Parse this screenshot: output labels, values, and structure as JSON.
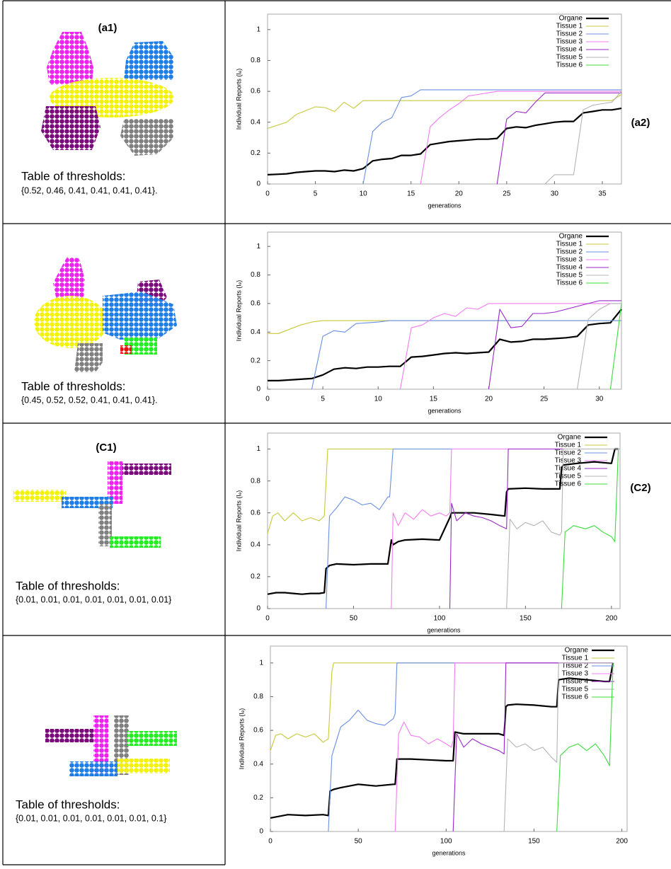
{
  "panels": [
    {
      "left_label": "(a1)",
      "right_label": "(a2)",
      "threshold_title": "Table of thresholds:",
      "thresholds": "{0.52, 0.46, 0.41, 0.41, 0.41, 0.41}."
    },
    {
      "threshold_title": "Table of thresholds:",
      "thresholds": "{0.45, 0.52, 0.52, 0.41, 0.41, 0.41}."
    },
    {
      "left_label": "(C1)",
      "right_label": "(C2)",
      "threshold_title": "Table of thresholds:",
      "thresholds": "{0.01, 0.01, 0.01, 0.01, 0.01, 0.01, 0.01}"
    },
    {
      "threshold_title": "Table of thresholds:",
      "thresholds": "{0.01, 0.01, 0.01, 0.01, 0.01, 0.01, 0.1}"
    }
  ],
  "chart_data": [
    {
      "type": "line",
      "x_label": "generations",
      "y_label": "Individual Reports (Iₑ)",
      "legend": "top-right",
      "xlim": [
        0,
        37
      ],
      "xticks": [
        0,
        5,
        10,
        15,
        20,
        25,
        30,
        35
      ],
      "ylim": [
        0,
        1.1
      ],
      "yticks": [
        0,
        0.2,
        0.4,
        0.6,
        0.8,
        1
      ],
      "series": [
        {
          "name": "Organe",
          "color": "#000000",
          "x": [
            0,
            1,
            2,
            3,
            4,
            5,
            6,
            7,
            8,
            9,
            10,
            11,
            12,
            13,
            14,
            15,
            16,
            17,
            18,
            19,
            20,
            21,
            22,
            23,
            24,
            25,
            26,
            27,
            28,
            29,
            30,
            31,
            32,
            33,
            34,
            35,
            36,
            37
          ],
          "values": [
            0.06,
            0.063,
            0.066,
            0.075,
            0.08,
            0.085,
            0.085,
            0.08,
            0.09,
            0.085,
            0.1,
            0.15,
            0.16,
            0.165,
            0.185,
            0.185,
            0.195,
            0.255,
            0.265,
            0.275,
            0.28,
            0.285,
            0.29,
            0.29,
            0.295,
            0.36,
            0.37,
            0.365,
            0.38,
            0.39,
            0.4,
            0.405,
            0.405,
            0.46,
            0.47,
            0.48,
            0.48,
            0.49
          ]
        },
        {
          "name": "Tissue 1",
          "color": "#c8c83c",
          "x": [
            0,
            2,
            3,
            5,
            6,
            7,
            8,
            9,
            10,
            36,
            37
          ],
          "values": [
            0.36,
            0.4,
            0.45,
            0.5,
            0.495,
            0.47,
            0.53,
            0.49,
            0.54,
            0.54,
            0.58
          ]
        },
        {
          "name": "Tissue 2",
          "color": "#6a8fe0",
          "x": [
            10,
            11,
            12,
            13,
            14,
            15,
            16,
            37
          ],
          "values": [
            0,
            0.34,
            0.4,
            0.43,
            0.56,
            0.57,
            0.61,
            0.61
          ]
        },
        {
          "name": "Tissue 3",
          "color": "#f07cf0",
          "x": [
            16,
            17,
            18,
            19,
            20,
            21,
            22,
            23,
            24,
            37
          ],
          "values": [
            0,
            0.37,
            0.43,
            0.48,
            0.52,
            0.57,
            0.58,
            0.59,
            0.6,
            0.6
          ]
        },
        {
          "name": "Tissue 4",
          "color": "#9a28c8",
          "x": [
            24,
            25,
            26,
            27,
            28,
            29,
            37
          ],
          "values": [
            0,
            0.42,
            0.47,
            0.46,
            0.53,
            0.59,
            0.59
          ]
        },
        {
          "name": "Tissue 5",
          "color": "#b4b4b4",
          "x": [
            29,
            30,
            32,
            33,
            34,
            35,
            36,
            37
          ],
          "values": [
            0,
            0.06,
            0.06,
            0.48,
            0.51,
            0.52,
            0.53,
            0.6
          ]
        },
        {
          "name": "Tissue 6",
          "color": "#3cdc3c",
          "x": [],
          "values": []
        }
      ]
    },
    {
      "type": "line",
      "x_label": "generations",
      "y_label": "Individual Reports (Iₑ)",
      "legend": "top-right",
      "xlim": [
        0,
        32
      ],
      "xticks": [
        0,
        5,
        10,
        15,
        20,
        25,
        30
      ],
      "ylim": [
        0,
        1.1
      ],
      "yticks": [
        0,
        0.2,
        0.4,
        0.6,
        0.8,
        1
      ],
      "series": [
        {
          "name": "Organe",
          "color": "#000000",
          "x": [
            0,
            1,
            2,
            3,
            4,
            5,
            6,
            7,
            8,
            9,
            10,
            11,
            12,
            13,
            14,
            15,
            16,
            17,
            18,
            19,
            20,
            21,
            22,
            23,
            24,
            25,
            26,
            27,
            28,
            29,
            30,
            31,
            32
          ],
          "values": [
            0.06,
            0.06,
            0.065,
            0.07,
            0.075,
            0.1,
            0.14,
            0.15,
            0.145,
            0.155,
            0.155,
            0.16,
            0.16,
            0.225,
            0.23,
            0.24,
            0.25,
            0.255,
            0.25,
            0.255,
            0.26,
            0.35,
            0.33,
            0.335,
            0.35,
            0.35,
            0.355,
            0.36,
            0.37,
            0.45,
            0.46,
            0.465,
            0.56
          ]
        },
        {
          "name": "Tissue 1",
          "color": "#c8c83c",
          "x": [
            0,
            1,
            2,
            3,
            4,
            5,
            32
          ],
          "values": [
            0.39,
            0.39,
            0.42,
            0.45,
            0.47,
            0.48,
            0.48
          ]
        },
        {
          "name": "Tissue 2",
          "color": "#6a8fe0",
          "x": [
            4,
            5,
            6,
            7,
            8,
            9,
            10,
            11,
            32
          ],
          "values": [
            0,
            0.37,
            0.41,
            0.4,
            0.46,
            0.465,
            0.47,
            0.48,
            0.48
          ]
        },
        {
          "name": "Tissue 3",
          "color": "#f07cf0",
          "x": [
            12,
            13,
            14,
            15,
            16,
            17,
            18,
            19,
            20,
            21,
            32
          ],
          "values": [
            0,
            0.43,
            0.45,
            0.5,
            0.53,
            0.51,
            0.57,
            0.56,
            0.6,
            0.6,
            0.6
          ]
        },
        {
          "name": "Tissue 4",
          "color": "#9a28c8",
          "x": [
            20,
            21,
            22,
            23,
            24,
            25,
            26,
            27,
            28,
            29,
            30,
            32
          ],
          "values": [
            0,
            0.56,
            0.43,
            0.44,
            0.53,
            0.53,
            0.54,
            0.56,
            0.58,
            0.6,
            0.62,
            0.62
          ]
        },
        {
          "name": "Tissue 5",
          "color": "#b4b4b4",
          "x": [
            28,
            29,
            30,
            31,
            32
          ],
          "values": [
            0,
            0.49,
            0.56,
            0.6,
            0.6
          ]
        },
        {
          "name": "Tissue 6",
          "color": "#3cdc3c",
          "x": [
            31,
            32
          ],
          "values": [
            0,
            0.6
          ]
        }
      ]
    },
    {
      "type": "line",
      "x_label": "generations",
      "y_label": "Individual Reports (Iₑ)",
      "legend": "top-right",
      "xlim": [
        0,
        205
      ],
      "xticks": [
        0,
        50,
        100,
        150,
        200
      ],
      "ylim": [
        0,
        1.1
      ],
      "yticks": [
        0,
        0.2,
        0.4,
        0.6,
        0.8,
        1
      ],
      "series": [
        {
          "name": "Organe",
          "color": "#000000",
          "x": [
            0,
            5,
            10,
            15,
            20,
            25,
            30,
            33,
            34,
            36,
            40,
            50,
            60,
            70,
            72,
            73,
            76,
            80,
            90,
            100,
            106,
            107,
            110,
            120,
            130,
            138,
            139,
            140,
            150,
            160,
            170,
            171,
            172,
            180,
            190,
            200,
            202,
            204
          ],
          "values": [
            0.09,
            0.1,
            0.1,
            0.095,
            0.09,
            0.095,
            0.095,
            0.1,
            0.25,
            0.27,
            0.28,
            0.275,
            0.28,
            0.28,
            0.43,
            0.4,
            0.42,
            0.43,
            0.435,
            0.43,
            0.57,
            0.6,
            0.6,
            0.6,
            0.59,
            0.58,
            0.73,
            0.75,
            0.755,
            0.75,
            0.75,
            0.88,
            0.9,
            0.91,
            0.92,
            0.91,
            1,
            1
          ]
        },
        {
          "name": "Tissue 1",
          "color": "#c8c83c",
          "x": [
            0,
            3,
            6,
            10,
            15,
            20,
            25,
            30,
            33,
            35,
            205
          ],
          "values": [
            0.47,
            0.58,
            0.6,
            0.55,
            0.6,
            0.55,
            0.57,
            0.55,
            0.58,
            1,
            1
          ]
        },
        {
          "name": "Tissue 2",
          "color": "#6a8fe0",
          "x": [
            34,
            36,
            40,
            45,
            50,
            55,
            60,
            65,
            70,
            71,
            73,
            205
          ],
          "values": [
            0,
            0.58,
            0.63,
            0.7,
            0.68,
            0.65,
            0.66,
            0.62,
            0.7,
            0.7,
            1,
            1
          ]
        },
        {
          "name": "Tissue 3",
          "color": "#f07cf0",
          "x": [
            72,
            73,
            76,
            80,
            85,
            90,
            95,
            100,
            104,
            106,
            107,
            205
          ],
          "values": [
            0,
            0.6,
            0.52,
            0.6,
            0.56,
            0.62,
            0.58,
            0.6,
            0.58,
            0.6,
            1,
            1
          ]
        },
        {
          "name": "Tissue 4",
          "color": "#9a28c8",
          "x": [
            106,
            107,
            110,
            115,
            120,
            125,
            130,
            135,
            139,
            140,
            205
          ],
          "values": [
            0,
            0.66,
            0.55,
            0.6,
            0.58,
            0.57,
            0.55,
            0.52,
            0.5,
            1,
            1
          ]
        },
        {
          "name": "Tissue 5",
          "color": "#b4b4b4",
          "x": [
            139,
            141,
            145,
            150,
            155,
            160,
            165,
            170,
            171,
            172,
            205
          ],
          "values": [
            0,
            0.56,
            0.5,
            0.54,
            0.52,
            0.55,
            0.48,
            0.46,
            0.48,
            1,
            1
          ]
        },
        {
          "name": "Tissue 6",
          "color": "#3cdc3c",
          "x": [
            171,
            173,
            178,
            185,
            190,
            195,
            200,
            202,
            204
          ],
          "values": [
            0,
            0.48,
            0.52,
            0.5,
            0.52,
            0.48,
            0.45,
            0.42,
            1
          ]
        }
      ]
    },
    {
      "type": "line",
      "x_label": "generations",
      "y_label": "Individual Reports (Iₑ)",
      "legend": "top-right",
      "xlim": [
        0,
        203
      ],
      "xticks": [
        0,
        50,
        100,
        150,
        200
      ],
      "ylim": [
        0,
        1.1
      ],
      "yticks": [
        0,
        0.2,
        0.4,
        0.6,
        0.8,
        1
      ],
      "series": [
        {
          "name": "Organe",
          "color": "#000000",
          "x": [
            0,
            10,
            20,
            30,
            33,
            34,
            36,
            40,
            50,
            60,
            70,
            71,
            72,
            75,
            80,
            90,
            100,
            104,
            105,
            110,
            120,
            130,
            133,
            134,
            135,
            140,
            150,
            160,
            163,
            164,
            170,
            180,
            190,
            193,
            195
          ],
          "values": [
            0.08,
            0.1,
            0.095,
            0.1,
            0.095,
            0.24,
            0.25,
            0.26,
            0.28,
            0.27,
            0.28,
            0.28,
            0.43,
            0.43,
            0.43,
            0.425,
            0.42,
            0.42,
            0.59,
            0.58,
            0.58,
            0.58,
            0.57,
            0.74,
            0.75,
            0.755,
            0.75,
            0.74,
            0.74,
            0.9,
            0.91,
            0.9,
            0.89,
            0.89,
            1
          ]
        },
        {
          "name": "Tissue 1",
          "color": "#c8c83c",
          "x": [
            0,
            3,
            6,
            10,
            15,
            20,
            25,
            30,
            33,
            35,
            36,
            195
          ],
          "values": [
            0.48,
            0.57,
            0.58,
            0.55,
            0.58,
            0.56,
            0.58,
            0.53,
            0.55,
            0.95,
            1,
            1
          ]
        },
        {
          "name": "Tissue 2",
          "color": "#6a8fe0",
          "x": [
            33,
            35,
            40,
            45,
            50,
            55,
            60,
            65,
            70,
            71,
            72,
            195
          ],
          "values": [
            0,
            0.45,
            0.62,
            0.66,
            0.72,
            0.66,
            0.64,
            0.63,
            0.67,
            0.7,
            1,
            1
          ]
        },
        {
          "name": "Tissue 3",
          "color": "#f07cf0",
          "x": [
            71,
            73,
            76,
            80,
            85,
            90,
            95,
            100,
            103,
            104,
            105,
            195
          ],
          "values": [
            0,
            0.58,
            0.65,
            0.57,
            0.56,
            0.52,
            0.55,
            0.52,
            0.5,
            0.54,
            1,
            1
          ]
        },
        {
          "name": "Tissue 4",
          "color": "#9a28c8",
          "x": [
            104,
            106,
            110,
            115,
            120,
            125,
            130,
            133,
            134,
            195
          ],
          "values": [
            0,
            0.58,
            0.5,
            0.55,
            0.52,
            0.5,
            0.48,
            0.46,
            1,
            1
          ]
        },
        {
          "name": "Tissue 5",
          "color": "#b4b4b4",
          "x": [
            133,
            135,
            140,
            145,
            150,
            155,
            160,
            163,
            164,
            195
          ],
          "values": [
            0,
            0.55,
            0.5,
            0.52,
            0.48,
            0.5,
            0.44,
            0.41,
            1,
            1
          ]
        },
        {
          "name": "Tissue 6",
          "color": "#3cdc3c",
          "x": [
            163,
            165,
            170,
            175,
            180,
            185,
            190,
            193,
            195
          ],
          "values": [
            0,
            0.45,
            0.5,
            0.52,
            0.48,
            0.52,
            0.45,
            0.39,
            1
          ]
        }
      ]
    }
  ]
}
